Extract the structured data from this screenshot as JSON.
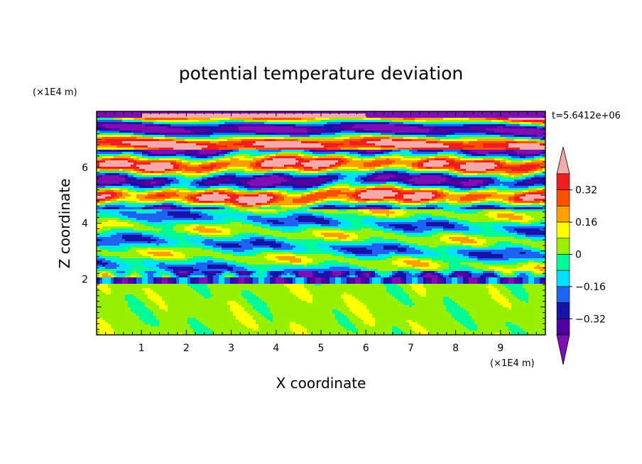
{
  "chart_data": {
    "type": "heatmap",
    "title": "potential temperature deviation",
    "xlabel": "X coordinate",
    "ylabel": "Z coordinate",
    "x_unit": "(×1E4 m)",
    "y_unit": "(×1E4 m)",
    "time_label": "t=5.6412e+06",
    "xlim": [
      0,
      10
    ],
    "ylim": [
      0,
      8
    ],
    "x_ticks": [
      "1",
      "2",
      "3",
      "4",
      "5",
      "6",
      "7",
      "8",
      "9"
    ],
    "y_ticks": [
      "2",
      "4",
      "6"
    ],
    "colorbar": {
      "levels": [
        -0.4,
        -0.32,
        -0.24,
        -0.16,
        -0.08,
        0,
        0.08,
        0.16,
        0.24,
        0.32,
        0.4
      ],
      "labels": [
        "0.32",
        "0.16",
        "0",
        "−0.16",
        "−0.32"
      ],
      "label_values": [
        0.32,
        0.16,
        0,
        -0.16,
        -0.32
      ],
      "colors": [
        "#7e0fb4",
        "#5000a0",
        "#1414a8",
        "#1e64f0",
        "#00e1ff",
        "#00fa96",
        "#96f000",
        "#ffff00",
        "#ffa000",
        "#ff5000",
        "#f01e1e",
        "#f5aaaa"
      ]
    }
  }
}
